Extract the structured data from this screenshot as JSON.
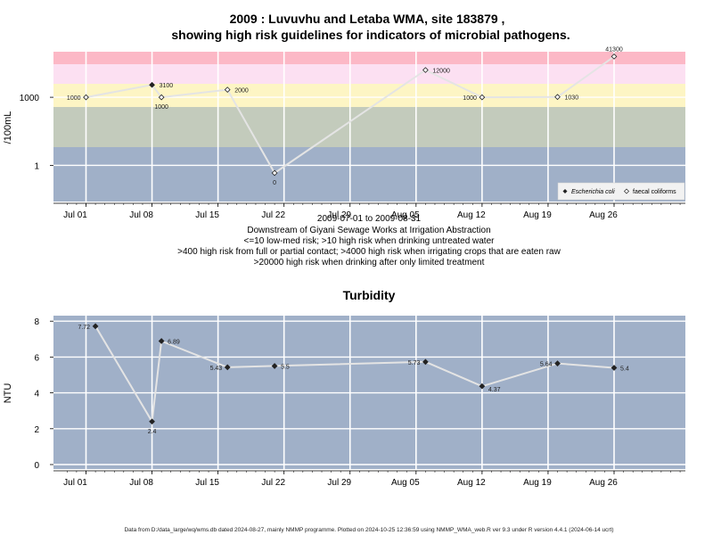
{
  "chart_data": [
    {
      "type": "scatter",
      "title_lines": [
        "2009 : Luvuvhu and Letaba WMA, site 183879 ,",
        "showing high risk guidelines for indicators of microbial pathogens."
      ],
      "ylabel": "/100mL",
      "y_scale": "log10",
      "ytick_labels": [
        "1",
        "1000"
      ],
      "xtick_labels": [
        "Jul 01",
        "Jul 08",
        "Jul 15",
        "Jul 22",
        "Jul 29",
        "Aug 05",
        "Aug 12",
        "Aug 19",
        "Aug 26"
      ],
      "xtick_dates": [
        "2009-07-01",
        "2009-07-08",
        "2009-07-15",
        "2009-07-22",
        "2009-07-29",
        "2009-08-05",
        "2009-08-12",
        "2009-08-19",
        "2009-08-26"
      ],
      "risk_band_colors": [
        "#a0b0c8",
        "#c3cbbc",
        "#fdf5c4",
        "#fce0f2",
        "#fcb8c6"
      ],
      "series": [
        {
          "name": "Escherichia coli",
          "marker": "filled-diamond",
          "points": [
            {
              "date": "2009-07-08",
              "value": 3100,
              "label": "3100"
            }
          ]
        },
        {
          "name": "faecal coliforms",
          "marker": "open-diamond",
          "points": [
            {
              "date": "2009-07-01",
              "value": 1000,
              "label": "1000"
            },
            {
              "date": "2009-07-09",
              "value": 1000,
              "label": "1000"
            },
            {
              "date": "2009-07-16",
              "value": 2000,
              "label": "2000"
            },
            {
              "date": "2009-07-21",
              "value": 0,
              "label": "0"
            },
            {
              "date": "2009-08-06",
              "value": 12000,
              "label": "12000"
            },
            {
              "date": "2009-08-12",
              "value": 1000,
              "label": "1000"
            },
            {
              "date": "2009-08-20",
              "value": 1030,
              "label": "1030"
            },
            {
              "date": "2009-08-26",
              "value": 41300,
              "label": "41300"
            }
          ]
        }
      ],
      "legend_position": "bottom-right",
      "grid": true,
      "notes": [
        "2009-07-01 to 2009-08-31",
        "Downstream of Giyani Sewage Works at Irrigation Abstraction",
        "<=10 low-med risk; >10 high risk when drinking untreated water",
        ">400 high risk from full or partial contact; >4000 high risk when irrigating crops that are eaten raw",
        ">20000 high risk when drinking after only limited treatment"
      ]
    },
    {
      "type": "line",
      "title": "Turbidity",
      "ylabel": "NTU",
      "ylim": [
        0,
        8
      ],
      "ytick_labels": [
        "0",
        "2",
        "4",
        "6",
        "8"
      ],
      "yticks": [
        0,
        2,
        4,
        6,
        8
      ],
      "xtick_labels": [
        "Jul 01",
        "Jul 08",
        "Jul 15",
        "Jul 22",
        "Jul 29",
        "Aug 05",
        "Aug 12",
        "Aug 19",
        "Aug 26"
      ],
      "xtick_dates": [
        "2009-07-01",
        "2009-07-08",
        "2009-07-15",
        "2009-07-22",
        "2009-07-29",
        "2009-08-05",
        "2009-08-12",
        "2009-08-19",
        "2009-08-26"
      ],
      "background_color": "#a0b0c8",
      "grid": true,
      "points": [
        {
          "date": "2009-07-02",
          "value": 7.72,
          "label": "7.72"
        },
        {
          "date": "2009-07-08",
          "value": 2.4,
          "label": "2.4"
        },
        {
          "date": "2009-07-09",
          "value": 6.89,
          "label": "6.89"
        },
        {
          "date": "2009-07-16",
          "value": 5.43,
          "label": "5.43"
        },
        {
          "date": "2009-07-21",
          "value": 5.5,
          "label": "5.5"
        },
        {
          "date": "2009-08-06",
          "value": 5.73,
          "label": "5.73"
        },
        {
          "date": "2009-08-12",
          "value": 4.37,
          "label": "4.37"
        },
        {
          "date": "2009-08-20",
          "value": 5.64,
          "label": "5.64"
        },
        {
          "date": "2009-08-26",
          "value": 5.4,
          "label": "5.4"
        }
      ]
    }
  ],
  "footer": "Data from D:/data_large/wq/wms.db dated 2024-08-27, mainly NMMP programme. Plotted on 2024-10-25 12:36:59 using NMMP_WMA_web.R ver 9.3 under R version 4.4.1 (2024-06-14 ucrt)"
}
